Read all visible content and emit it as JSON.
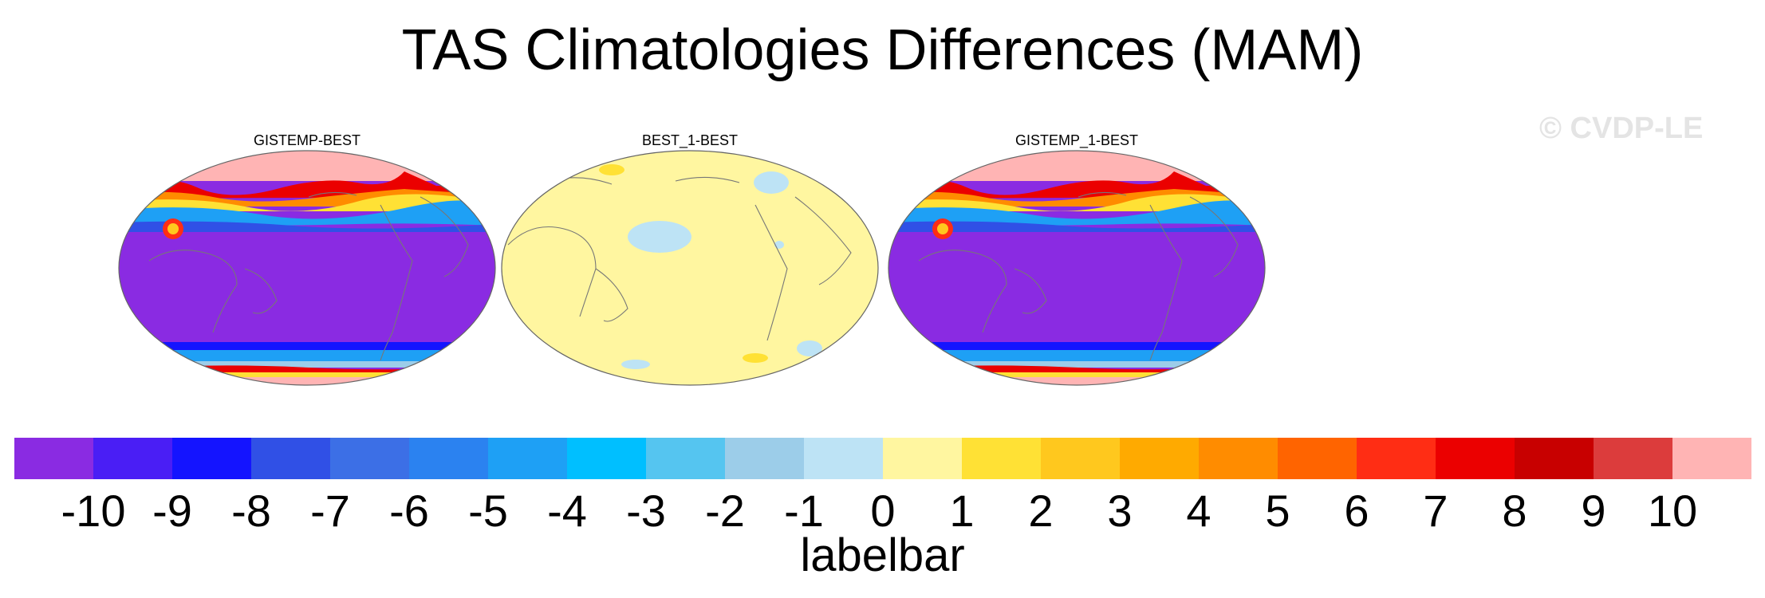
{
  "title": "TAS Climatologies Differences (MAM)",
  "watermark": "© CVDP-LE",
  "panels": [
    {
      "title": "GISTEMP-BEST",
      "pattern": "large-diff"
    },
    {
      "title": "BEST_1-BEST",
      "pattern": "small-diff"
    },
    {
      "title": "GISTEMP_1-BEST",
      "pattern": "large-diff"
    }
  ],
  "colorbar": {
    "label": "labelbar",
    "tick_labels": [
      "-10",
      "-9",
      "-8",
      "-7",
      "-6",
      "-5",
      "-4",
      "-3",
      "-2",
      "-1",
      "0",
      "1",
      "2",
      "3",
      "4",
      "5",
      "6",
      "7",
      "8",
      "9",
      "10"
    ],
    "colors": [
      "#8a2be2",
      "#4a1ef5",
      "#1414ff",
      "#3050e6",
      "#3c6fe6",
      "#2b82f0",
      "#1ea0f5",
      "#00bfff",
      "#55c5f0",
      "#9ccde9",
      "#bde3f5",
      "#fff6a0",
      "#ffe135",
      "#ffc81e",
      "#ffaa00",
      "#ff8c00",
      "#ff6400",
      "#ff2d14",
      "#eb0000",
      "#c80000",
      "#dc3c3c",
      "#ffb4b4"
    ]
  },
  "map_colors": {
    "ocean_low": "#8a2be2",
    "neutral_pos": "#fff6a0",
    "neutral_neg": "#bde3f5",
    "polar_high": "#ffb4b4",
    "coast": "#777777"
  }
}
